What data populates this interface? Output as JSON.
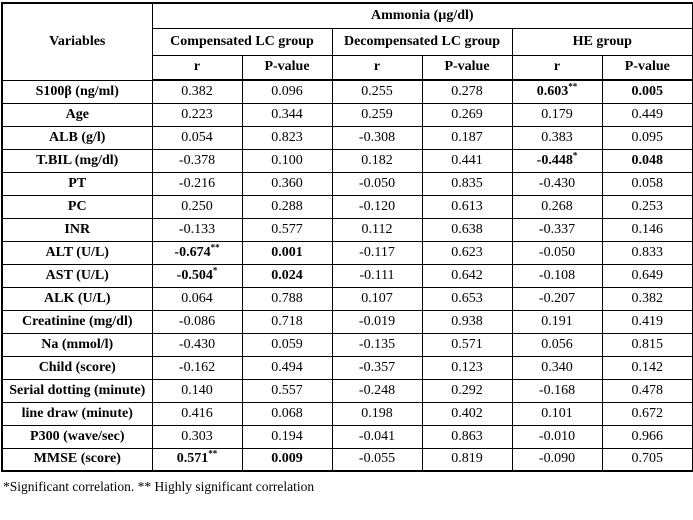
{
  "table": {
    "header": {
      "variables_label": "Variables",
      "ammonia_label": "Ammonia (µg/dl)",
      "groups": [
        {
          "label": "Compensated LC group"
        },
        {
          "label": "Decompensated LC group"
        },
        {
          "label": "HE group"
        }
      ],
      "r_label": "r",
      "p_label": "P-value"
    },
    "rows": [
      {
        "label": "S100β (ng/ml)",
        "cells": [
          {
            "v": "0.382"
          },
          {
            "v": "0.096"
          },
          {
            "v": "0.255"
          },
          {
            "v": "0.278"
          },
          {
            "v": "0.603",
            "sup": "**",
            "bold": true
          },
          {
            "v": "0.005",
            "bold": true
          }
        ]
      },
      {
        "label": "Age",
        "cells": [
          {
            "v": "0.223"
          },
          {
            "v": "0.344"
          },
          {
            "v": "0.259"
          },
          {
            "v": "0.269"
          },
          {
            "v": "0.179"
          },
          {
            "v": "0.449"
          }
        ]
      },
      {
        "label": "ALB (g/l)",
        "cells": [
          {
            "v": "0.054"
          },
          {
            "v": "0.823"
          },
          {
            "v": "-0.308"
          },
          {
            "v": "0.187"
          },
          {
            "v": "0.383"
          },
          {
            "v": "0.095"
          }
        ]
      },
      {
        "label": "T.BIL (mg/dl)",
        "cells": [
          {
            "v": "-0.378"
          },
          {
            "v": "0.100"
          },
          {
            "v": "0.182"
          },
          {
            "v": "0.441"
          },
          {
            "v": "-0.448",
            "sup": "*",
            "bold": true
          },
          {
            "v": "0.048",
            "bold": true
          }
        ]
      },
      {
        "label": "PT",
        "cells": [
          {
            "v": "-0.216"
          },
          {
            "v": "0.360"
          },
          {
            "v": "-0.050"
          },
          {
            "v": "0.835"
          },
          {
            "v": "-0.430"
          },
          {
            "v": "0.058"
          }
        ]
      },
      {
        "label": "PC",
        "cells": [
          {
            "v": "0.250"
          },
          {
            "v": "0.288"
          },
          {
            "v": "-0.120"
          },
          {
            "v": "0.613"
          },
          {
            "v": "0.268"
          },
          {
            "v": "0.253"
          }
        ]
      },
      {
        "label": "INR",
        "cells": [
          {
            "v": "-0.133"
          },
          {
            "v": "0.577"
          },
          {
            "v": "0.112"
          },
          {
            "v": "0.638"
          },
          {
            "v": "-0.337"
          },
          {
            "v": "0.146"
          }
        ]
      },
      {
        "label": "ALT (U/L)",
        "cells": [
          {
            "v": "-0.674",
            "sup": "**",
            "bold": true
          },
          {
            "v": "0.001",
            "bold": true
          },
          {
            "v": "-0.117"
          },
          {
            "v": "0.623"
          },
          {
            "v": "-0.050"
          },
          {
            "v": "0.833"
          }
        ]
      },
      {
        "label": "AST (U/L)",
        "cells": [
          {
            "v": "-0.504",
            "sup": "*",
            "bold": true
          },
          {
            "v": "0.024",
            "bold": true
          },
          {
            "v": "-0.111"
          },
          {
            "v": "0.642"
          },
          {
            "v": "-0.108"
          },
          {
            "v": "0.649"
          }
        ]
      },
      {
        "label": "ALK (U/L)",
        "cells": [
          {
            "v": "0.064"
          },
          {
            "v": "0.788"
          },
          {
            "v": "0.107"
          },
          {
            "v": "0.653"
          },
          {
            "v": "-0.207"
          },
          {
            "v": "0.382"
          }
        ]
      },
      {
        "label": "Creatinine (mg/dl)",
        "cells": [
          {
            "v": "-0.086"
          },
          {
            "v": "0.718"
          },
          {
            "v": "-0.019"
          },
          {
            "v": "0.938"
          },
          {
            "v": "0.191"
          },
          {
            "v": "0.419"
          }
        ]
      },
      {
        "label": "Na (mmol/l)",
        "cells": [
          {
            "v": "-0.430"
          },
          {
            "v": "0.059"
          },
          {
            "v": "-0.135"
          },
          {
            "v": "0.571"
          },
          {
            "v": "0.056"
          },
          {
            "v": "0.815"
          }
        ]
      },
      {
        "label": "Child (score)",
        "cells": [
          {
            "v": "-0.162"
          },
          {
            "v": "0.494"
          },
          {
            "v": "-0.357"
          },
          {
            "v": "0.123"
          },
          {
            "v": "0.340"
          },
          {
            "v": "0.142"
          }
        ]
      },
      {
        "label": "Serial dotting (minute)",
        "cells": [
          {
            "v": "0.140"
          },
          {
            "v": "0.557"
          },
          {
            "v": "-0.248"
          },
          {
            "v": "0.292"
          },
          {
            "v": "-0.168"
          },
          {
            "v": "0.478"
          }
        ]
      },
      {
        "label": "line draw (minute)",
        "cells": [
          {
            "v": "0.416"
          },
          {
            "v": "0.068"
          },
          {
            "v": "0.198"
          },
          {
            "v": "0.402"
          },
          {
            "v": "0.101"
          },
          {
            "v": "0.672"
          }
        ]
      },
      {
        "label": "P300 (wave/sec)",
        "cells": [
          {
            "v": "0.303"
          },
          {
            "v": "0.194"
          },
          {
            "v": "-0.041"
          },
          {
            "v": "0.863"
          },
          {
            "v": "-0.010"
          },
          {
            "v": "0.966"
          }
        ]
      },
      {
        "label": "MMSE (score)",
        "cells": [
          {
            "v": "0.571",
            "sup": "**",
            "bold": true
          },
          {
            "v": "0.009",
            "bold": true
          },
          {
            "v": "-0.055"
          },
          {
            "v": "0.819"
          },
          {
            "v": "-0.090"
          },
          {
            "v": "0.705"
          }
        ]
      }
    ]
  },
  "footnote": "*Significant correlation. ** Highly significant correlation",
  "colors": {
    "text": "#000000",
    "border": "#000000",
    "background": "#ffffff"
  }
}
